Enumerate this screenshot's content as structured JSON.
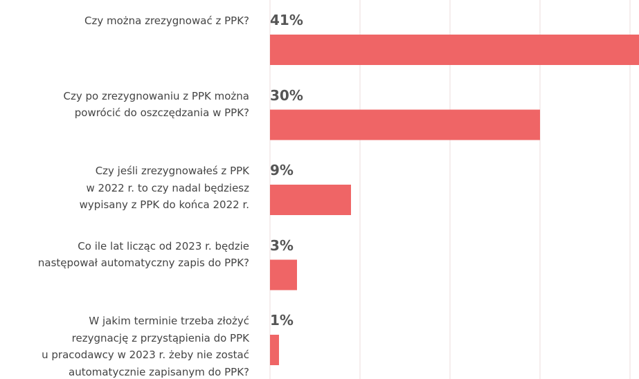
{
  "chart_data": {
    "type": "bar",
    "orientation": "horizontal",
    "categories": [
      "Czy można zrezygnować z PPK?",
      "Czy po zrezygnowaniu z PPK można\npowrócić do oszczędzania w PPK?",
      "Czy jeśli  zrezygnowałeś z PPK\nw 2022 r. to czy nadal będziesz\nwypisany z PPK do końca 2022 r.",
      "Co ile lat licząc od 2023 r. będzie\nnastępował automatyczny zapis do PPK?",
      "W jakim terminie trzeba złożyć\nrezygnację z przystąpienia do PPK\nu pracodawcy w 2023 r. żeby nie zostać\nautomatycznie zapisanym do PPK?"
    ],
    "values": [
      41,
      30,
      9,
      3,
      1
    ],
    "value_labels": [
      "41%",
      "30%",
      "9%",
      "3%",
      "1%"
    ],
    "color": "#ef6566",
    "xlim": [
      0,
      41
    ],
    "xticks": [
      0,
      10,
      20,
      30,
      40
    ],
    "grid": true
  }
}
